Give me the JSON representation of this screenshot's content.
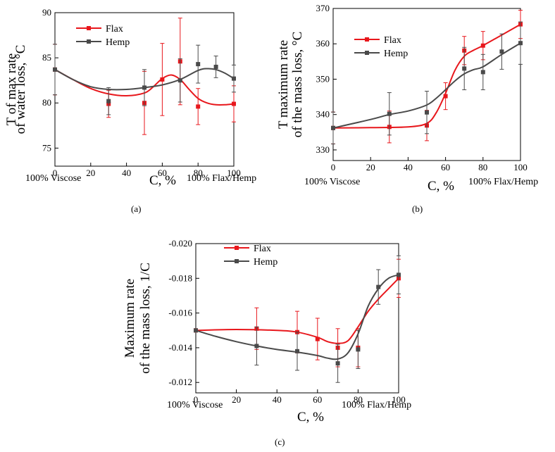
{
  "colors": {
    "flax": "#e8171c",
    "hemp": "#4a4a4a",
    "axis": "#000000"
  },
  "chart_data": [
    {
      "type": "line",
      "panel": "a",
      "caption": "(a)",
      "ylabel_lines": [
        "T of max rate",
        "of water loss, °C"
      ],
      "xlabel": "C, %",
      "x_notes": [
        "100% Viscose",
        "100% Flax/Hemp"
      ],
      "xlim": [
        0,
        100
      ],
      "ylim": [
        73,
        90
      ],
      "xticks": [
        0,
        20,
        40,
        60,
        80,
        100
      ],
      "xtick_labels": [
        "0",
        "20",
        "40",
        "60",
        "80",
        "100"
      ],
      "yticks": [
        75,
        80,
        85,
        90
      ],
      "ytick_labels": [
        "75",
        "80",
        "85",
        "90"
      ],
      "series": [
        {
          "name": "Flax",
          "color_key": "flax",
          "x": [
            0,
            30,
            50,
            60,
            70,
            80,
            100
          ],
          "y": [
            83.7,
            79.9,
            80.0,
            82.6,
            84.6,
            79.6,
            79.9
          ],
          "err": [
            2.8,
            1.5,
            3.5,
            4.0,
            4.8,
            2.0,
            2.0
          ],
          "curve_x": [
            0,
            10,
            20,
            30,
            40,
            50,
            55,
            60,
            65,
            70,
            75,
            80,
            85,
            90,
            95,
            100
          ],
          "curve_y": [
            83.7,
            82.6,
            81.6,
            81.0,
            80.8,
            81.1,
            81.8,
            82.7,
            83.1,
            82.6,
            81.5,
            80.5,
            80.0,
            79.8,
            79.8,
            79.9
          ]
        },
        {
          "name": "Hemp",
          "color_key": "hemp",
          "x": [
            0,
            30,
            50,
            70,
            80,
            90,
            100
          ],
          "y": [
            83.7,
            80.2,
            81.7,
            82.5,
            84.3,
            84.0,
            82.7
          ],
          "err": [
            2.8,
            1.5,
            2.0,
            2.4,
            2.1,
            1.2,
            1.5
          ],
          "curve_x": [
            0,
            10,
            20,
            30,
            40,
            50,
            60,
            70,
            80,
            85,
            90,
            95,
            100
          ],
          "curve_y": [
            83.7,
            82.6,
            81.8,
            81.5,
            81.5,
            81.7,
            82.0,
            82.6,
            83.6,
            83.8,
            83.7,
            83.3,
            82.7
          ]
        }
      ]
    },
    {
      "type": "line",
      "panel": "b",
      "caption": "(b)",
      "ylabel_lines": [
        "T maximum rate",
        "of the mass loss, °C"
      ],
      "xlabel": "C, %",
      "x_notes": [
        "100% Viscose",
        "100% Flax/Hemp"
      ],
      "xlim": [
        0,
        100
      ],
      "ylim": [
        327,
        370
      ],
      "xticks": [
        0,
        20,
        40,
        60,
        80,
        100
      ],
      "xtick_labels": [
        "0",
        "20",
        "40",
        "60",
        "80",
        "100"
      ],
      "yticks": [
        330,
        340,
        350,
        360,
        370
      ],
      "ytick_labels": [
        "330",
        "340",
        "350",
        "360",
        "370"
      ],
      "series": [
        {
          "name": "Flax",
          "color_key": "flax",
          "x": [
            0,
            30,
            50,
            60,
            70,
            80,
            100
          ],
          "y": [
            336.2,
            336.5,
            336.9,
            345.2,
            358.1,
            359.5,
            365.5
          ],
          "err": [
            4.5,
            4.5,
            4.3,
            3.8,
            4.0,
            4.0,
            4.0
          ],
          "curve_x": [
            0,
            20,
            40,
            50,
            55,
            60,
            65,
            70,
            75,
            80,
            90,
            100
          ],
          "curve_y": [
            336.2,
            336.3,
            336.5,
            337.5,
            340.5,
            346.0,
            352.5,
            356.5,
            358.2,
            359.5,
            362.5,
            365.5
          ]
        },
        {
          "name": "Hemp",
          "color_key": "hemp",
          "x": [
            0,
            30,
            50,
            70,
            80,
            90,
            100
          ],
          "y": [
            336.2,
            340.2,
            340.6,
            353.0,
            352.0,
            357.8,
            360.2
          ],
          "err": [
            4.5,
            6.0,
            6.0,
            6.0,
            5.0,
            5.0,
            6.0
          ],
          "curve_x": [
            0,
            20,
            30,
            40,
            50,
            55,
            60,
            65,
            70,
            75,
            80,
            90,
            100
          ],
          "curve_y": [
            336.2,
            338.6,
            340.0,
            341.0,
            342.7,
            344.6,
            347.0,
            349.5,
            351.5,
            352.7,
            353.5,
            357.0,
            360.2
          ]
        }
      ]
    },
    {
      "type": "line",
      "panel": "c",
      "caption": "(c)",
      "ylabel_lines": [
        "Maximum rate",
        "of the mass loss, 1/C"
      ],
      "xlabel": "C, %",
      "x_notes": [
        "100% Viscose",
        "100% Flax/Hemp"
      ],
      "xlim": [
        0,
        100
      ],
      "ylim": [
        -0.0114,
        -0.02
      ],
      "xticks": [
        0,
        20,
        40,
        60,
        80,
        100
      ],
      "xtick_labels": [
        "0",
        "20",
        "40",
        "60",
        "80",
        "100"
      ],
      "yticks": [
        -0.012,
        -0.014,
        -0.016,
        -0.018,
        -0.02
      ],
      "ytick_labels": [
        "-0.012",
        "-0.014",
        "-0.016",
        "-0.018",
        "-0.020"
      ],
      "series": [
        {
          "name": "Flax",
          "color_key": "flax",
          "x": [
            0,
            30,
            50,
            60,
            70,
            80,
            100
          ],
          "y": [
            -0.015,
            -0.0151,
            -0.0149,
            -0.0145,
            -0.014,
            -0.014,
            -0.018
          ],
          "err": [
            0.0,
            0.0012,
            0.0012,
            0.0012,
            0.0011,
            0.0011,
            0.0011
          ],
          "curve_x": [
            0,
            20,
            40,
            50,
            60,
            65,
            70,
            75,
            80,
            85,
            90,
            95,
            100
          ],
          "curve_y": [
            -0.015,
            -0.01505,
            -0.015,
            -0.0149,
            -0.0146,
            -0.01435,
            -0.01425,
            -0.0144,
            -0.0152,
            -0.0161,
            -0.0168,
            -0.0174,
            -0.018
          ]
        },
        {
          "name": "Hemp",
          "color_key": "hemp",
          "x": [
            0,
            30,
            50,
            70,
            80,
            90,
            100
          ],
          "y": [
            -0.015,
            -0.0141,
            -0.0138,
            -0.0131,
            -0.0139,
            -0.0175,
            -0.0182
          ],
          "err": [
            0.0,
            0.0011,
            0.0011,
            0.0011,
            0.0011,
            0.001,
            0.0011
          ],
          "curve_x": [
            0,
            10,
            20,
            30,
            40,
            50,
            60,
            65,
            70,
            75,
            80,
            85,
            90,
            95,
            100
          ],
          "curve_y": [
            -0.015,
            -0.01465,
            -0.01435,
            -0.0141,
            -0.0139,
            -0.01375,
            -0.01355,
            -0.0134,
            -0.01335,
            -0.0137,
            -0.0148,
            -0.0164,
            -0.0174,
            -0.018,
            -0.0182
          ]
        }
      ]
    }
  ]
}
